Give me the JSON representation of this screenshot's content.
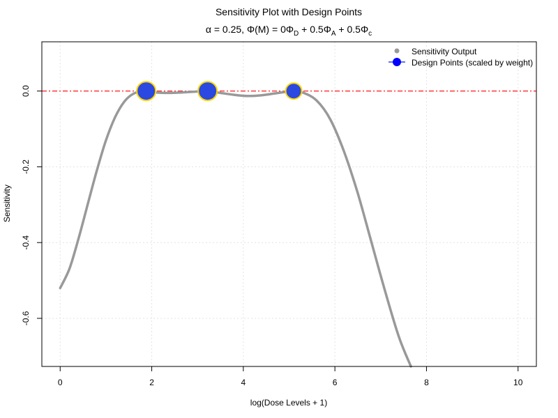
{
  "chart_data": {
    "type": "line",
    "title": "Sensitivity Plot with Design Points",
    "subtitle": {
      "alpha_symbol": "α",
      "alpha_text": " = 0.25, ",
      "phi_symbol": "Φ",
      "phi_arg": "(M)",
      "equals_text": " = 0",
      "term1_sub": "D",
      "plus1_text": " + 0.5",
      "term2_sub": "A",
      "plus2_text": " + 0.5",
      "term3_sub": "c"
    },
    "xlabel": "log(Dose Levels + 1)",
    "ylabel": "Sensitivity",
    "xlim": [
      -0.4,
      10.4
    ],
    "ylim": [
      -0.727,
      0.13
    ],
    "x_ticks": [
      0,
      2,
      4,
      6,
      8,
      10
    ],
    "y_ticks": [
      0.0,
      -0.2,
      -0.4,
      -0.6
    ],
    "grid": true,
    "reference_line": {
      "y": 0.0,
      "color": "#ff0000",
      "style": "dashdot"
    },
    "series": [
      {
        "name": "Sensitivity Output",
        "color": "#999999",
        "x": [
          0.0,
          0.2,
          0.4,
          0.6,
          0.8,
          1.0,
          1.2,
          1.4,
          1.6,
          1.8,
          1.88,
          2.0,
          2.3,
          2.6,
          2.9,
          3.22,
          3.5,
          3.8,
          4.1,
          4.4,
          4.7,
          5.0,
          5.1,
          5.3,
          5.6,
          5.9,
          6.2,
          6.5,
          6.8,
          7.1,
          7.4,
          7.66
        ],
        "y": [
          -0.52,
          -0.47,
          -0.39,
          -0.3,
          -0.21,
          -0.13,
          -0.069,
          -0.028,
          -0.007,
          0.0,
          0.0,
          -0.003,
          -0.005,
          -0.004,
          -0.002,
          0.0,
          -0.005,
          -0.01,
          -0.013,
          -0.011,
          -0.006,
          -0.001,
          0.0,
          -0.004,
          -0.025,
          -0.075,
          -0.16,
          -0.27,
          -0.4,
          -0.53,
          -0.65,
          -0.727
        ]
      }
    ],
    "design_points": {
      "name": "Design Points (scaled by weight)",
      "fill_color": "#2b48e0",
      "edge_color": "#ffd700",
      "points": [
        {
          "x": 1.88,
          "y": 0.0
        },
        {
          "x": 3.22,
          "y": 0.0
        },
        {
          "x": 5.1,
          "y": 0.0
        }
      ]
    },
    "legend": {
      "position": "top-right",
      "entries": [
        "Sensitivity Output",
        "Design Points (scaled by weight)"
      ]
    }
  }
}
